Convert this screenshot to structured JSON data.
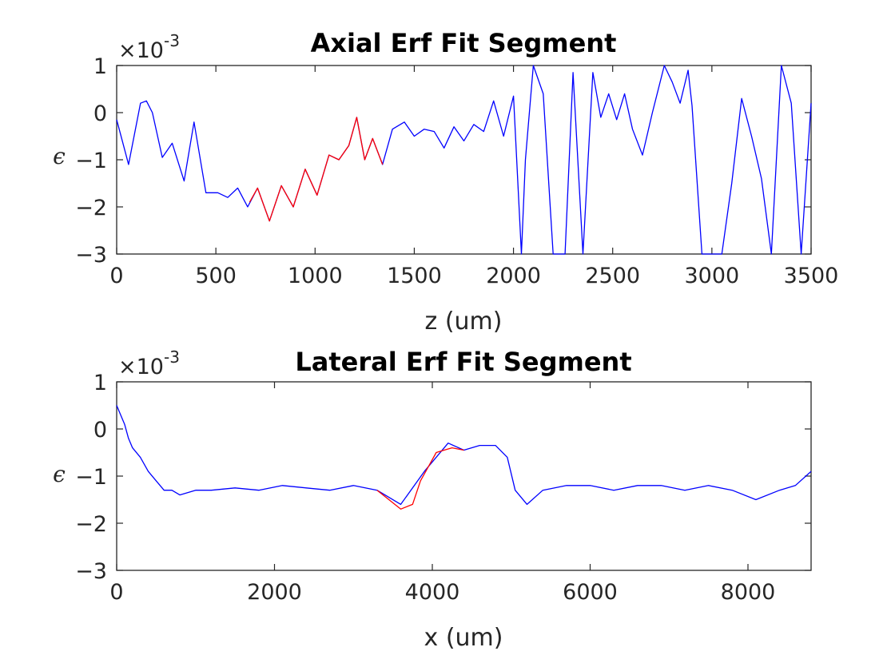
{
  "chart_data": [
    {
      "type": "line",
      "title": "Axial Erf Fit Segment",
      "xlabel": "z (um)",
      "ylabel": "ϵ",
      "y_exponent": "×10",
      "y_exponent_power": "-3",
      "xlim": [
        0,
        3500
      ],
      "ylim": [
        -3,
        1
      ],
      "xticks": [
        "0",
        "500",
        "1000",
        "1500",
        "2000",
        "2500",
        "3000",
        "3500"
      ],
      "yticks": [
        "1",
        "0",
        "−1",
        "−2",
        "−3"
      ],
      "grid": false,
      "colors": {
        "main": "#0000ff",
        "fit": "#ff0000"
      },
      "series": [
        {
          "color": "#0000ff",
          "x": [
            0,
            60,
            120,
            150,
            180,
            230,
            280,
            340,
            390,
            450,
            510,
            560,
            610,
            660,
            710,
            770,
            830,
            890,
            950,
            1010,
            1070,
            1120,
            1170,
            1210,
            1250,
            1290,
            1340,
            1390,
            1450,
            1500,
            1550,
            1600,
            1650,
            1700,
            1750,
            1800,
            1850,
            1900,
            1950,
            2000,
            2040,
            2060,
            2100,
            2150,
            2200,
            2260,
            2300,
            2350,
            2400,
            2440,
            2480,
            2520,
            2560,
            2600,
            2650,
            2700,
            2760,
            2800,
            2840,
            2880,
            2900,
            2950,
            3000,
            3050,
            3100,
            3150,
            3200,
            3250,
            3300,
            3350,
            3400,
            3450,
            3500
          ],
          "y": [
            -0.15,
            -1.1,
            0.2,
            0.25,
            0.0,
            -0.95,
            -0.65,
            -1.45,
            -0.2,
            -1.7,
            -1.7,
            -1.8,
            -1.6,
            -2.0,
            -1.6,
            -2.3,
            -1.55,
            -2.0,
            -1.2,
            -1.75,
            -0.9,
            -1.0,
            -0.7,
            -0.1,
            -1.0,
            -0.55,
            -1.1,
            -0.35,
            -0.2,
            -0.5,
            -0.35,
            -0.4,
            -0.75,
            -0.3,
            -0.6,
            -0.25,
            -0.4,
            0.25,
            -0.5,
            0.35,
            -3.0,
            -1.0,
            1.0,
            0.4,
            -3.0,
            -3.0,
            0.85,
            -3.0,
            0.85,
            -0.1,
            0.4,
            -0.15,
            0.4,
            -0.35,
            -0.9,
            0.0,
            1.0,
            0.65,
            0.2,
            0.9,
            0.15,
            -3.0,
            -3.0,
            -3.0,
            -1.5,
            0.3,
            -0.5,
            -1.4,
            -3.0,
            1.0,
            0.2,
            -3.0,
            0.2
          ]
        },
        {
          "color": "#ff0000",
          "x": [
            670,
            710,
            770,
            830,
            890,
            950,
            1010,
            1070,
            1120,
            1170,
            1210,
            1250,
            1290,
            1340
          ],
          "y": [
            -1.9,
            -1.6,
            -2.3,
            -1.55,
            -2.0,
            -1.2,
            -1.75,
            -0.9,
            -1.0,
            -0.7,
            -0.1,
            -1.0,
            -0.55,
            -1.1
          ]
        }
      ]
    },
    {
      "type": "line",
      "title": "Lateral Erf Fit Segment",
      "xlabel": "x (um)",
      "ylabel": "ϵ",
      "y_exponent": "×10",
      "y_exponent_power": "-3",
      "xlim": [
        0,
        8800
      ],
      "ylim": [
        -3,
        1
      ],
      "xticks": [
        "0",
        "2000",
        "4000",
        "6000",
        "8000"
      ],
      "yticks": [
        "1",
        "0",
        "−1",
        "−2",
        "−3"
      ],
      "grid": false,
      "colors": {
        "main": "#0000ff",
        "fit": "#ff0000"
      },
      "series": [
        {
          "color": "#0000ff",
          "x": [
            0,
            50,
            100,
            150,
            200,
            300,
            400,
            500,
            600,
            700,
            800,
            1000,
            1200,
            1500,
            1800,
            2100,
            2400,
            2700,
            3000,
            3300,
            3600,
            3900,
            4200,
            4400,
            4600,
            4800,
            4950,
            5050,
            5200,
            5400,
            5700,
            6000,
            6300,
            6600,
            6900,
            7200,
            7500,
            7800,
            8100,
            8400,
            8600,
            8800
          ],
          "y": [
            0.5,
            0.3,
            0.1,
            -0.2,
            -0.4,
            -0.6,
            -0.9,
            -1.1,
            -1.3,
            -1.3,
            -1.4,
            -1.3,
            -1.3,
            -1.25,
            -1.3,
            -1.2,
            -1.25,
            -1.3,
            -1.2,
            -1.3,
            -1.6,
            -0.9,
            -0.3,
            -0.45,
            -0.35,
            -0.35,
            -0.6,
            -1.3,
            -1.6,
            -1.3,
            -1.2,
            -1.2,
            -1.3,
            -1.2,
            -1.2,
            -1.3,
            -1.2,
            -1.3,
            -1.5,
            -1.3,
            -1.2,
            -0.9
          ]
        },
        {
          "color": "#ff0000",
          "x": [
            3300,
            3450,
            3600,
            3750,
            3850,
            3950,
            4050,
            4150,
            4250,
            4400
          ],
          "y": [
            -1.3,
            -1.5,
            -1.7,
            -1.6,
            -1.1,
            -0.8,
            -0.5,
            -0.45,
            -0.4,
            -0.45
          ]
        }
      ]
    }
  ]
}
